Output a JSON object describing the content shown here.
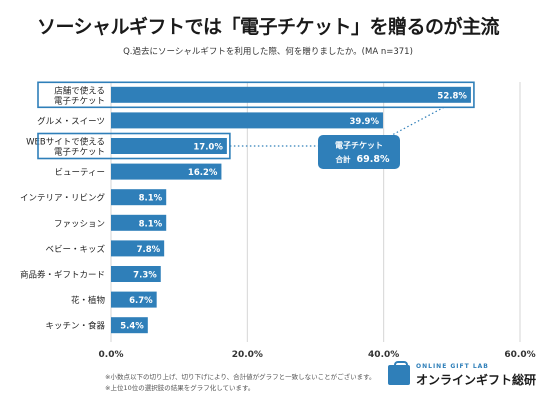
{
  "header": {
    "title": "ソーシャルギフトでは「電子チケット」を贈るのが主流",
    "question": "Q.過去にソーシャルギフトを利用した際、何を贈りましたか。(MA n=371)"
  },
  "callout": {
    "line1": "電子チケット",
    "line2_label": "合計",
    "line2_value": "69.8%"
  },
  "notes": [
    "※小数点以下の切り上げ、切り下げにより、合計値がグラフと一致しないことがございます。",
    "※上位10位の選択肢の結果をグラフ化しています。"
  ],
  "logo": {
    "top": "ONLINE GIFT LAB",
    "name": "オンラインギフト総研"
  },
  "colors": {
    "bar": "#2f7fb9",
    "highlight_border": "#2f7fb9",
    "callout_bg": "#2f7fb9",
    "dotted_line": "#2f7fb9",
    "grid": "#d6d6d6"
  },
  "chart_data": {
    "type": "bar",
    "orientation": "horizontal",
    "categories": [
      "店舗で使える電子チケット",
      "グルメ・スイーツ",
      "WEBサイトで使える電子チケット",
      "ビューティー",
      "インテリア・リビング",
      "ファッション",
      "ベビー・キッズ",
      "商品券・ギフトカード",
      "花・植物",
      "キッチン・食器"
    ],
    "category_lines": [
      [
        "店舗で使える",
        "電子チケット"
      ],
      [
        "グルメ・スイーツ"
      ],
      [
        "WEBサイトで使える",
        "電子チケット"
      ],
      [
        "ビューティー"
      ],
      [
        "インテリア・リビング"
      ],
      [
        "ファッション"
      ],
      [
        "ベビー・キッズ"
      ],
      [
        "商品券・ギフトカード"
      ],
      [
        "花・植物"
      ],
      [
        "キッチン・食器"
      ]
    ],
    "values": [
      52.8,
      39.9,
      17.0,
      16.2,
      8.1,
      8.1,
      7.8,
      7.3,
      6.7,
      5.4
    ],
    "value_labels": [
      "52.8%",
      "39.9%",
      "17.0%",
      "16.2%",
      "8.1%",
      "8.1%",
      "7.8%",
      "7.3%",
      "6.7%",
      "5.4%"
    ],
    "highlighted": [
      0,
      2
    ],
    "xlim": [
      0,
      60
    ],
    "xticks": [
      0,
      20,
      40,
      60
    ],
    "xtick_labels": [
      "0.0%",
      "20.0%",
      "40.0%",
      "60.0%"
    ],
    "grid": true
  }
}
